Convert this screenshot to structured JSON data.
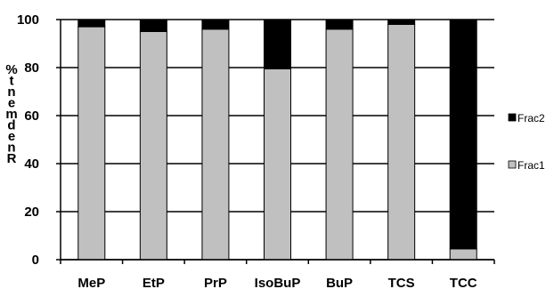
{
  "chart_data": {
    "type": "bar",
    "stacked": true,
    "categories": [
      "MeP",
      "EtP",
      "PrP",
      "IsoBuP",
      "BuP",
      "TCS",
      "TCC"
    ],
    "series": [
      {
        "name": "Frac1",
        "values": [
          97,
          95,
          96,
          79.5,
          96,
          98,
          4.5
        ],
        "color": "#c0c0c0"
      },
      {
        "name": "Frac2",
        "values": [
          3,
          5,
          4,
          20.5,
          4,
          2,
          95.5
        ],
        "color": "#000000"
      }
    ],
    "ylabel": "% t n e m d e n R",
    "ylim": [
      0,
      100
    ],
    "yticks": [
      0,
      20,
      40,
      60,
      80,
      100
    ],
    "grid": true,
    "legend": "right"
  }
}
